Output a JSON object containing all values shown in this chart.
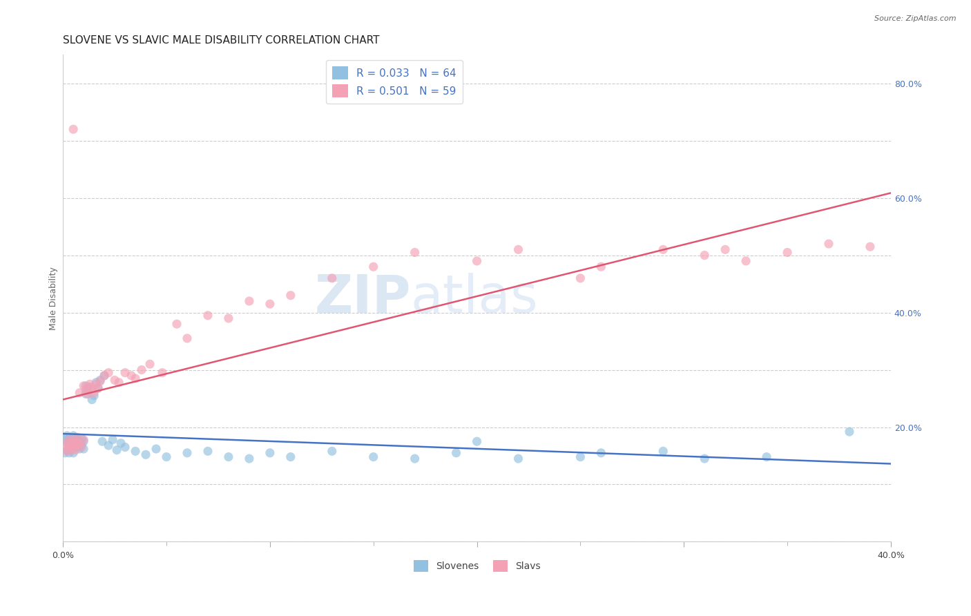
{
  "title": "SLOVENE VS SLAVIC MALE DISABILITY CORRELATION CHART",
  "source": "Source: ZipAtlas.com",
  "ylabel": "Male Disability",
  "xlim": [
    0.0,
    0.4
  ],
  "ylim": [
    0.0,
    0.85
  ],
  "ytick_positions": [
    0.0,
    0.2,
    0.4,
    0.6,
    0.8
  ],
  "ytick_labels": [
    "",
    "20.0%",
    "40.0%",
    "60.0%",
    "80.0%"
  ],
  "xtick_major": [
    0.0,
    0.1,
    0.2,
    0.3,
    0.4
  ],
  "xtick_major_labels": [
    "0.0%",
    "",
    "",
    "",
    "40.0%"
  ],
  "xtick_minor": [
    0.05,
    0.1,
    0.15,
    0.2,
    0.25,
    0.3,
    0.35
  ],
  "blue_color": "#92C0E0",
  "pink_color": "#F4A0B5",
  "blue_line_color": "#4472C4",
  "pink_line_color": "#E05570",
  "legend_blue_R": "R = 0.033",
  "legend_blue_N": "N = 64",
  "legend_pink_R": "R = 0.501",
  "legend_pink_N": "N = 59",
  "legend_blue_label": "Slovenes",
  "legend_pink_label": "Slavs",
  "watermark_line1": "ZIP",
  "watermark_line2": "atlas",
  "background_color": "#FFFFFF",
  "grid_color": "#CCCCCC",
  "slovene_x": [
    0.001,
    0.001,
    0.002,
    0.002,
    0.002,
    0.003,
    0.003,
    0.003,
    0.004,
    0.004,
    0.004,
    0.005,
    0.005,
    0.005,
    0.006,
    0.006,
    0.006,
    0.007,
    0.007,
    0.007,
    0.008,
    0.008,
    0.009,
    0.009,
    0.01,
    0.01,
    0.011,
    0.011,
    0.012,
    0.013,
    0.014,
    0.015,
    0.016,
    0.017,
    0.018,
    0.019,
    0.02,
    0.022,
    0.024,
    0.026,
    0.028,
    0.03,
    0.035,
    0.04,
    0.045,
    0.05,
    0.06,
    0.07,
    0.08,
    0.09,
    0.1,
    0.11,
    0.13,
    0.15,
    0.17,
    0.19,
    0.2,
    0.22,
    0.25,
    0.26,
    0.29,
    0.31,
    0.34,
    0.38
  ],
  "slovene_y": [
    0.18,
    0.155,
    0.175,
    0.16,
    0.185,
    0.17,
    0.155,
    0.18,
    0.165,
    0.175,
    0.16,
    0.185,
    0.17,
    0.155,
    0.175,
    0.168,
    0.182,
    0.165,
    0.178,
    0.172,
    0.175,
    0.162,
    0.18,
    0.17,
    0.175,
    0.162,
    0.258,
    0.272,
    0.265,
    0.27,
    0.248,
    0.255,
    0.278,
    0.268,
    0.282,
    0.175,
    0.29,
    0.168,
    0.178,
    0.16,
    0.172,
    0.165,
    0.158,
    0.152,
    0.162,
    0.148,
    0.155,
    0.158,
    0.148,
    0.145,
    0.155,
    0.148,
    0.158,
    0.148,
    0.145,
    0.155,
    0.175,
    0.145,
    0.148,
    0.155,
    0.158,
    0.145,
    0.148,
    0.192
  ],
  "slavs_x": [
    0.001,
    0.002,
    0.002,
    0.003,
    0.003,
    0.004,
    0.004,
    0.005,
    0.005,
    0.006,
    0.006,
    0.007,
    0.007,
    0.008,
    0.008,
    0.009,
    0.01,
    0.01,
    0.011,
    0.012,
    0.012,
    0.013,
    0.014,
    0.015,
    0.016,
    0.017,
    0.018,
    0.02,
    0.022,
    0.025,
    0.027,
    0.03,
    0.033,
    0.035,
    0.038,
    0.042,
    0.048,
    0.055,
    0.06,
    0.07,
    0.08,
    0.09,
    0.1,
    0.11,
    0.13,
    0.15,
    0.17,
    0.2,
    0.22,
    0.25,
    0.26,
    0.29,
    0.31,
    0.33,
    0.35,
    0.37,
    0.39,
    0.005,
    0.32
  ],
  "slavs_y": [
    0.165,
    0.158,
    0.172,
    0.165,
    0.178,
    0.16,
    0.172,
    0.165,
    0.175,
    0.16,
    0.175,
    0.168,
    0.182,
    0.172,
    0.26,
    0.165,
    0.272,
    0.178,
    0.265,
    0.27,
    0.258,
    0.275,
    0.268,
    0.26,
    0.275,
    0.268,
    0.28,
    0.29,
    0.295,
    0.282,
    0.278,
    0.295,
    0.29,
    0.285,
    0.3,
    0.31,
    0.295,
    0.38,
    0.355,
    0.395,
    0.39,
    0.42,
    0.415,
    0.43,
    0.46,
    0.48,
    0.505,
    0.49,
    0.51,
    0.46,
    0.48,
    0.51,
    0.5,
    0.49,
    0.505,
    0.52,
    0.515,
    0.72,
    0.51
  ],
  "title_fontsize": 11,
  "axis_label_fontsize": 9,
  "tick_fontsize": 9,
  "marker_size": 90,
  "right_ytick_color": "#4472C4"
}
